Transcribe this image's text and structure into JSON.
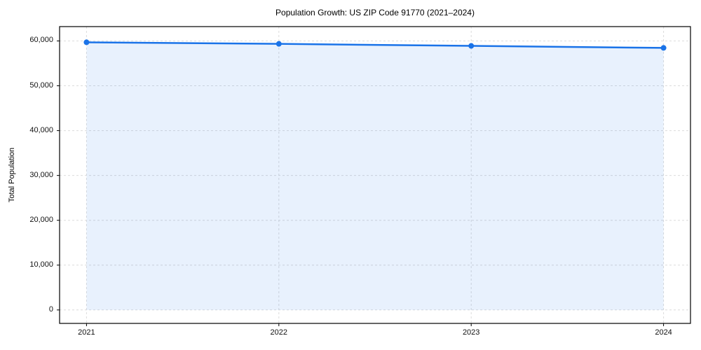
{
  "chart_data": {
    "type": "line",
    "title": "Population Growth: US ZIP Code 91770 (2021–2024)",
    "xlabel": "",
    "ylabel": "Total Population",
    "x": [
      2021,
      2022,
      2023,
      2024
    ],
    "series": [
      {
        "name": "Total Population",
        "values": [
          59700,
          59350,
          58900,
          58450
        ]
      }
    ],
    "xticks": [
      2021,
      2022,
      2023,
      2024
    ],
    "xtick_labels": [
      "2021",
      "2022",
      "2023",
      "2024"
    ],
    "yticks": [
      0,
      10000,
      20000,
      30000,
      40000,
      50000,
      60000
    ],
    "ytick_labels": [
      "0",
      "10,000",
      "20,000",
      "30,000",
      "40,000",
      "50,000",
      "60,000"
    ],
    "xlim": [
      2020.86,
      2024.14
    ],
    "ylim": [
      -3000,
      63200
    ],
    "grid": "dashed horizontal and vertical at ticks",
    "legend": "none",
    "area_fill_to_zero": true,
    "markers": "circle",
    "colors": {
      "line": "#1a73e8",
      "marker": "#1a73e8",
      "area": "rgba(26,115,232,0.10)",
      "grid": "#dcdcdc",
      "spine": "#000000",
      "text": "#000000",
      "background": "#ffffff"
    }
  }
}
